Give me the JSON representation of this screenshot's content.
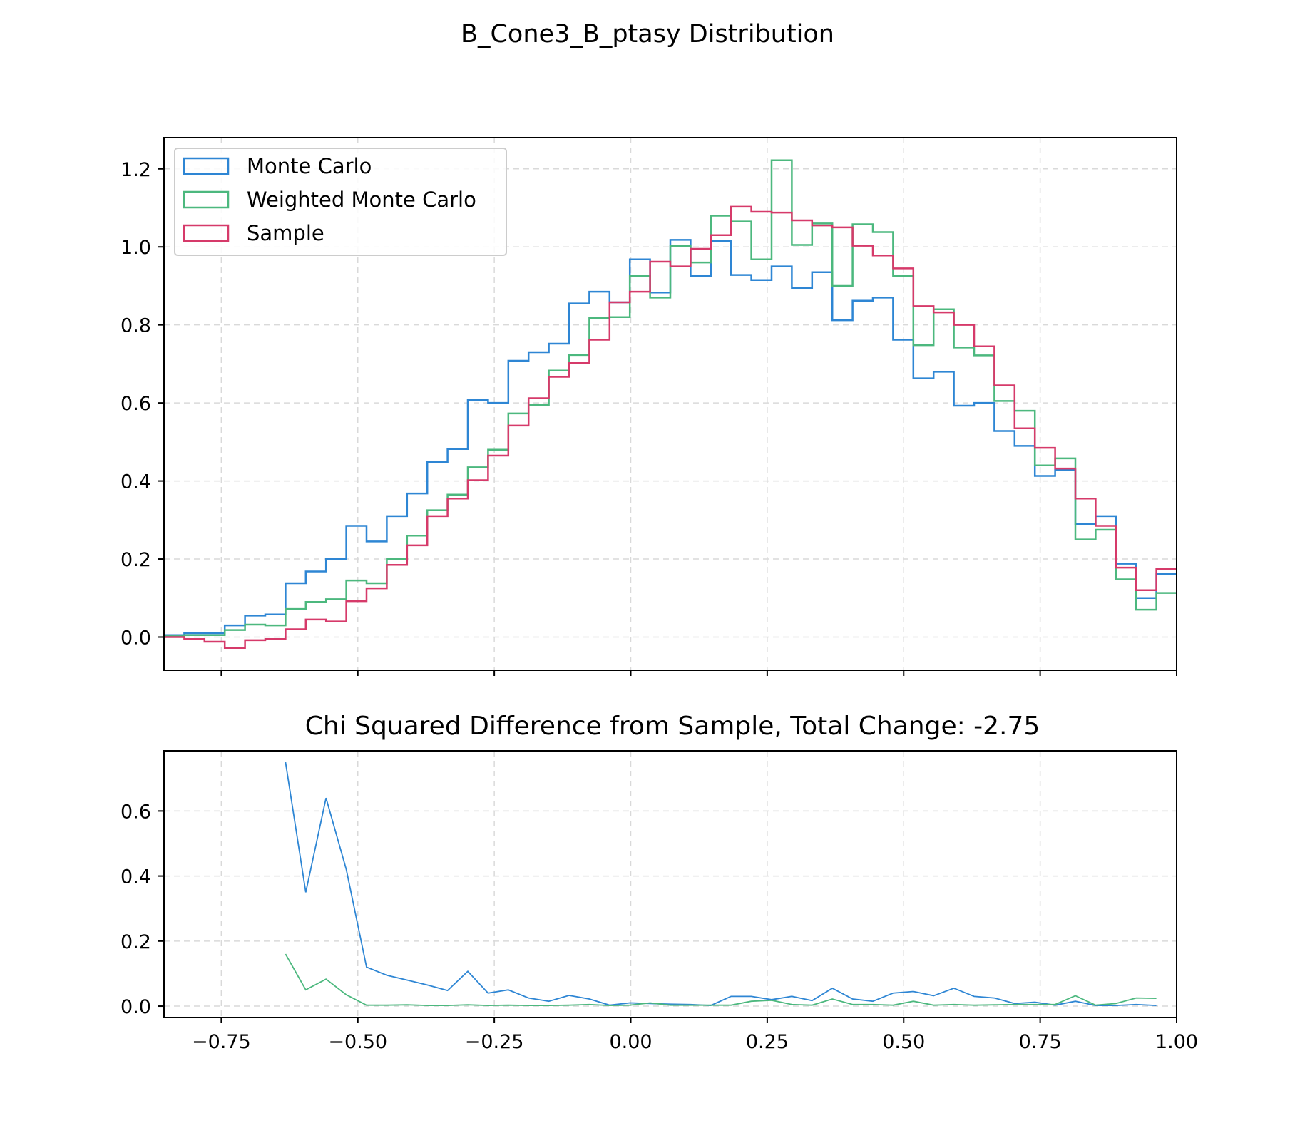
{
  "chart_data": [
    {
      "type": "line",
      "style": "step-histogram",
      "suptitle": "B_Cone3_B_ptasy Distribution",
      "title": "",
      "xlabel": "",
      "ylabel": "",
      "xlim": [
        -0.855,
        1.0
      ],
      "ylim": [
        -0.085,
        1.28
      ],
      "xticks": [
        -0.75,
        -0.5,
        -0.25,
        0.0,
        0.25,
        0.5,
        0.75,
        1.0
      ],
      "xticklabels": [],
      "yticks": [
        0.0,
        0.2,
        0.4,
        0.6,
        0.8,
        1.0,
        1.2
      ],
      "yticklabels": [
        "0.0",
        "0.2",
        "0.4",
        "0.6",
        "0.8",
        "1.0",
        "1.2"
      ],
      "grid": true,
      "legend_position": "top-left",
      "bin_edges": [
        -0.855,
        -0.8179,
        -0.7808,
        -0.7437,
        -0.7066,
        -0.6695,
        -0.6324,
        -0.5953,
        -0.5582,
        -0.5211,
        -0.484,
        -0.4469,
        -0.4098,
        -0.3727,
        -0.3356,
        -0.2985,
        -0.2614,
        -0.2243,
        -0.1872,
        -0.1501,
        -0.113,
        -0.0759,
        -0.0388,
        -0.0017,
        0.0354,
        0.0725,
        0.1096,
        0.1467,
        0.1838,
        0.2209,
        0.258,
        0.2951,
        0.3322,
        0.3693,
        0.4064,
        0.4435,
        0.4806,
        0.5177,
        0.5548,
        0.5919,
        0.629,
        0.6661,
        0.7032,
        0.7403,
        0.7774,
        0.8145,
        0.8516,
        0.8887,
        0.9258,
        0.9629,
        1.0
      ],
      "series": [
        {
          "name": "Monte Carlo",
          "color": "#2e86d4",
          "values": [
            0.005,
            0.01,
            0.01,
            0.03,
            0.055,
            0.058,
            0.138,
            0.168,
            0.2,
            0.285,
            0.245,
            0.31,
            0.368,
            0.448,
            0.482,
            0.608,
            0.6,
            0.708,
            0.73,
            0.752,
            0.855,
            0.885,
            0.858,
            0.968,
            0.883,
            1.018,
            0.925,
            1.015,
            0.928,
            0.915,
            0.95,
            0.895,
            0.935,
            0.812,
            0.862,
            0.87,
            0.762,
            0.663,
            0.68,
            0.593,
            0.6,
            0.528,
            0.49,
            0.413,
            0.428,
            0.29,
            0.31,
            0.188,
            0.1,
            0.162
          ]
        },
        {
          "name": "Weighted Monte Carlo",
          "color": "#4cb87e",
          "values": [
            0.002,
            0.005,
            0.005,
            0.018,
            0.032,
            0.03,
            0.072,
            0.09,
            0.097,
            0.145,
            0.138,
            0.2,
            0.26,
            0.325,
            0.365,
            0.435,
            0.48,
            0.573,
            0.595,
            0.683,
            0.723,
            0.818,
            0.82,
            0.925,
            0.87,
            1.002,
            0.96,
            1.08,
            1.065,
            0.968,
            1.222,
            1.005,
            1.06,
            0.9,
            1.058,
            1.038,
            0.925,
            0.748,
            0.84,
            0.742,
            0.722,
            0.605,
            0.58,
            0.44,
            0.458,
            0.25,
            0.275,
            0.148,
            0.07,
            0.113
          ]
        },
        {
          "name": "Sample",
          "color": "#d63a6a",
          "values": [
            0.0,
            -0.005,
            -0.012,
            -0.028,
            -0.008,
            -0.005,
            0.02,
            0.045,
            0.04,
            0.092,
            0.125,
            0.185,
            0.235,
            0.31,
            0.355,
            0.402,
            0.465,
            0.542,
            0.612,
            0.667,
            0.703,
            0.762,
            0.858,
            0.885,
            0.962,
            0.95,
            0.995,
            1.03,
            1.103,
            1.09,
            1.088,
            1.068,
            1.055,
            1.05,
            1.003,
            0.978,
            0.945,
            0.848,
            0.832,
            0.8,
            0.745,
            0.645,
            0.535,
            0.485,
            0.432,
            0.355,
            0.285,
            0.178,
            0.12,
            0.175
          ]
        }
      ]
    },
    {
      "type": "line",
      "title": "Chi Squared Difference from Sample, Total Change: -2.75",
      "xlabel": "",
      "ylabel": "",
      "xlim": [
        -0.855,
        1.0
      ],
      "ylim": [
        -0.035,
        0.785
      ],
      "xticks": [
        -0.75,
        -0.5,
        -0.25,
        0.0,
        0.25,
        0.5,
        0.75,
        1.0
      ],
      "xticklabels": [
        "−0.75",
        "−0.50",
        "−0.25",
        "0.00",
        "0.25",
        "0.50",
        "0.75",
        "1.00"
      ],
      "yticks": [
        0.0,
        0.2,
        0.4,
        0.6
      ],
      "yticklabels": [
        "0.0",
        "0.2",
        "0.4",
        "0.6"
      ],
      "grid": true,
      "x": [
        -0.6324,
        -0.5953,
        -0.5582,
        -0.5211,
        -0.484,
        -0.4469,
        -0.4098,
        -0.3727,
        -0.3356,
        -0.2985,
        -0.2614,
        -0.2243,
        -0.1872,
        -0.1501,
        -0.113,
        -0.0759,
        -0.0388,
        -0.0017,
        0.0354,
        0.0725,
        0.1096,
        0.1467,
        0.1838,
        0.2209,
        0.258,
        0.2951,
        0.3322,
        0.3693,
        0.4064,
        0.4435,
        0.4806,
        0.5177,
        0.5548,
        0.5919,
        0.629,
        0.6661,
        0.7032,
        0.7403,
        0.7774,
        0.8145,
        0.8516,
        0.8887,
        0.9258,
        0.9629
      ],
      "series": [
        {
          "color": "#2e86d4",
          "values": [
            0.75,
            0.35,
            0.64,
            0.42,
            0.12,
            0.095,
            0.08,
            0.065,
            0.048,
            0.107,
            0.04,
            0.05,
            0.025,
            0.015,
            0.033,
            0.022,
            0.003,
            0.01,
            0.008,
            0.006,
            0.005,
            0.002,
            0.03,
            0.03,
            0.02,
            0.03,
            0.017,
            0.055,
            0.022,
            0.015,
            0.04,
            0.045,
            0.032,
            0.055,
            0.03,
            0.025,
            0.008,
            0.012,
            0.003,
            0.015,
            0.002,
            0.002,
            0.005,
            0.002
          ]
        },
        {
          "color": "#4cb87e",
          "values": [
            0.16,
            0.05,
            0.083,
            0.035,
            0.003,
            0.003,
            0.004,
            0.002,
            0.002,
            0.004,
            0.002,
            0.003,
            0.002,
            0.002,
            0.003,
            0.005,
            0.002,
            0.003,
            0.01,
            0.003,
            0.003,
            0.003,
            0.003,
            0.015,
            0.018,
            0.005,
            0.003,
            0.022,
            0.005,
            0.005,
            0.003,
            0.015,
            0.003,
            0.005,
            0.003,
            0.004,
            0.005,
            0.005,
            0.005,
            0.032,
            0.003,
            0.008,
            0.025,
            0.024
          ]
        }
      ]
    }
  ]
}
